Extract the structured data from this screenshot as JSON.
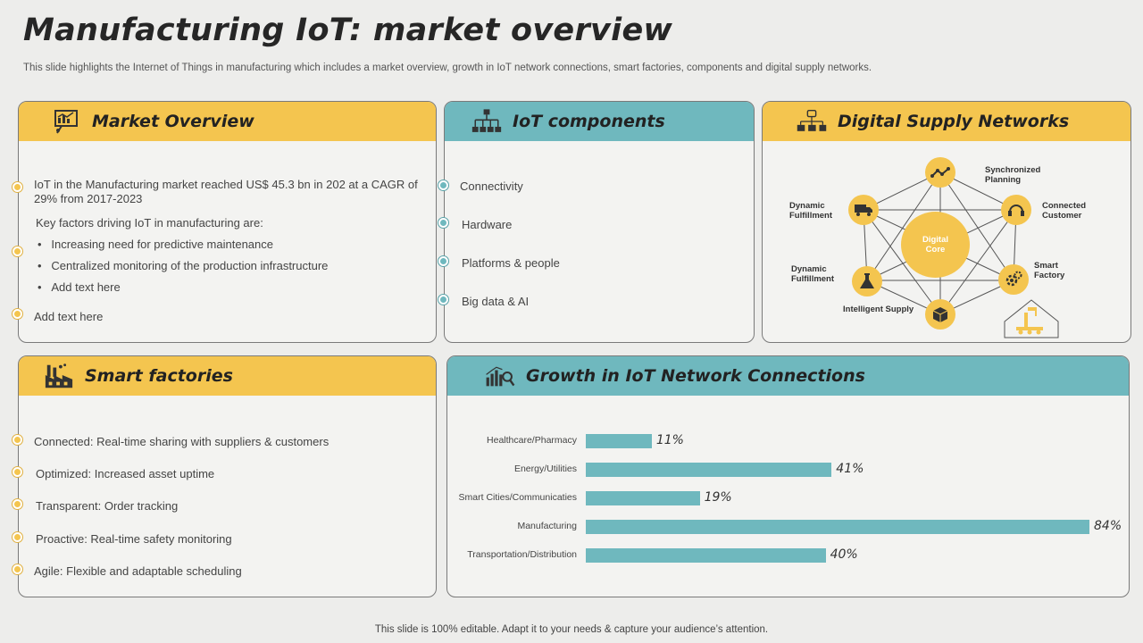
{
  "title": "Manufacturing IoT: market overview",
  "subtitle": "This slide highlights the Internet of Things in manufacturing which includes a market overview, growth in IoT network connections, smart factories, components and digital supply networks.",
  "footer": "This slide is 100% editable. Adapt it to your needs & capture your audience’s attention.",
  "colors": {
    "yellow": "#f4c54f",
    "teal": "#6fb8be"
  },
  "market_overview": {
    "title": "Market Overview",
    "icon": "presentation-chart-icon",
    "para1": "IoT in the Manufacturing market reached US$ 45.3 bn in 202 at a CAGR of 29% from 2017-2023",
    "intro": "Key factors driving IoT in manufacturing are:",
    "bullets": [
      "Increasing  need for predictive maintenance",
      "Centralized monitoring of the production infrastructure",
      "Add text here"
    ],
    "closing": "Add text here"
  },
  "iot_components": {
    "title": "IoT components",
    "icon": "hierarchy-icon",
    "items": [
      "Connectivity",
      "Hardware",
      "Platforms & people",
      "Big data & AI"
    ]
  },
  "digital_supply": {
    "title": "Digital Supply Networks",
    "icon": "network-devices-icon",
    "core": "Digital Core",
    "nodes": {
      "synchronized": "Synchronized Planning",
      "connected": "Connected Customer",
      "smart_factory": "Smart Factory",
      "intelligent": "Intelligent Supply",
      "dyn_fulfil_lower": "Dynamic Fulfillment",
      "dyn_fulfil_upper": "Dynamic Fulfillment"
    }
  },
  "smart_factories": {
    "title": "Smart factories",
    "icon": "factory-icon",
    "items": [
      "Connected: Real-time  sharing with suppliers & customers",
      "Optimized: Increased asset uptime",
      "Transparent:  Order tracking",
      "Proactive:  Real-time safety monitoring",
      "Agile:  Flexible and adaptable scheduling"
    ]
  },
  "growth": {
    "title": "Growth in IoT Network Connections",
    "icon": "bar-chart-magnifier-icon"
  },
  "chart_data": {
    "type": "bar",
    "orientation": "horizontal",
    "categories": [
      "Healthcare/Pharmacy",
      "Energy/Utilities",
      "Smart Cities/Communicaties",
      "Manufacturing",
      "Transportation/Distribution"
    ],
    "values": [
      11,
      41,
      19,
      84,
      40
    ],
    "value_labels": [
      "11%",
      "41%",
      "19%",
      "84%",
      "40%"
    ],
    "xlim": [
      0,
      84
    ],
    "grid": false,
    "color": "#6fb8be"
  }
}
